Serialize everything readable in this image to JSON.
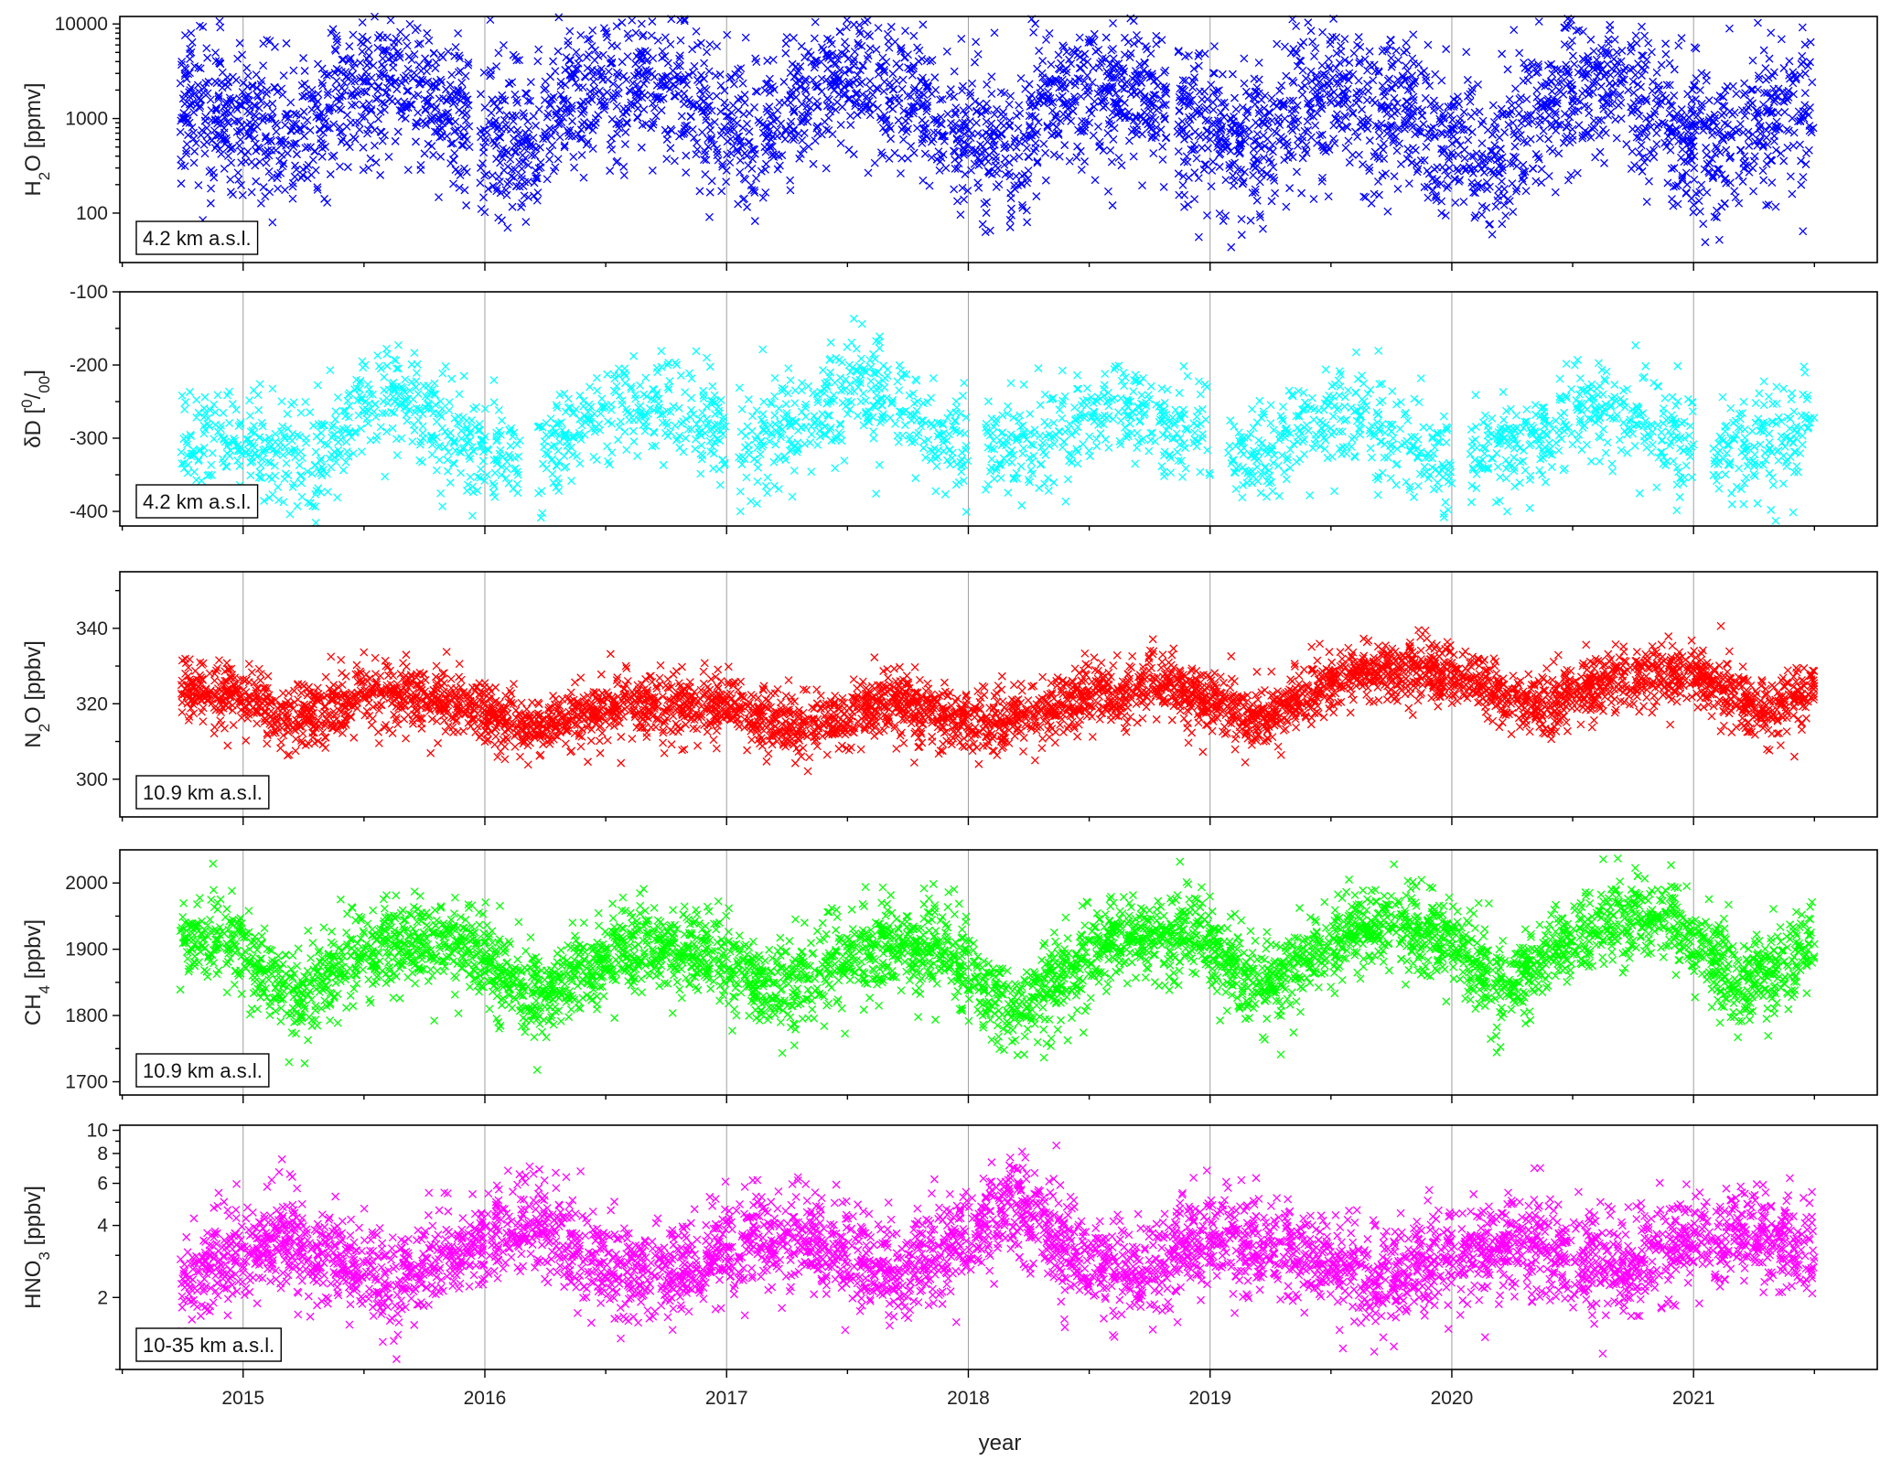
{
  "figure": {
    "xlabel": "year",
    "x_ticks": [
      "2015",
      "2016",
      "2017",
      "2018",
      "2019",
      "2020",
      "2021"
    ],
    "xlim": [
      2014.49,
      2021.76
    ],
    "grid": "vertical lines at each year"
  },
  "chart_data": [
    {
      "type": "scatter",
      "marker": "x",
      "ylabel": {
        "base": "H",
        "sub": "2",
        "rest": "O [ppmv]"
      },
      "annotation": "4.2 km a.s.l.",
      "color": "#0000ff",
      "yscale": "log",
      "ylim": [
        30,
        12000
      ],
      "y_ticks": [
        {
          "v": 100,
          "t": "100"
        },
        {
          "v": 1000,
          "t": "1000"
        },
        {
          "v": 10000,
          "t": "10000"
        }
      ],
      "minor_ticks": [
        200,
        300,
        400,
        500,
        600,
        700,
        800,
        900,
        2000,
        3000,
        4000,
        5000,
        6000,
        7000,
        8000,
        9000
      ],
      "x_range": [
        2014.74,
        2021.5
      ],
      "baseline": [
        [
          2014.74,
          1500
        ],
        [
          2015.0,
          800
        ],
        [
          2015.3,
          600
        ],
        [
          2015.6,
          2500
        ],
        [
          2015.9,
          1000
        ],
        [
          2016.2,
          400
        ],
        [
          2016.5,
          2500
        ],
        [
          2016.75,
          2000
        ],
        [
          2017.1,
          500
        ],
        [
          2017.55,
          3000
        ],
        [
          2017.9,
          700
        ],
        [
          2018.2,
          500
        ],
        [
          2018.55,
          2500
        ],
        [
          2018.9,
          800
        ],
        [
          2019.2,
          500
        ],
        [
          2019.55,
          2000
        ],
        [
          2019.9,
          700
        ],
        [
          2020.2,
          300
        ],
        [
          2020.6,
          2500
        ],
        [
          2020.9,
          800
        ],
        [
          2021.1,
          500
        ],
        [
          2021.5,
          1500
        ]
      ],
      "spread_log10": 0.4,
      "points": 4200,
      "gaps": [
        [
          2015.94,
          2015.98
        ],
        [
          2018.82,
          2018.86
        ]
      ]
    },
    {
      "type": "scatter",
      "marker": "x",
      "ylabel": {
        "base": "δD [",
        "sup": "0",
        "rest": "/",
        "sub": "00",
        "end": "]"
      },
      "annotation": "4.2 km a.s.l.",
      "color": "#00ffff",
      "yscale": "linear",
      "ylim": [
        -420,
        -100
      ],
      "y_ticks": [
        {
          "v": -100,
          "t": "-100"
        },
        {
          "v": -200,
          "t": "-200"
        },
        {
          "v": -300,
          "t": "-300"
        },
        {
          "v": -400,
          "t": "-400"
        }
      ],
      "minor_ticks": [
        -150,
        -250,
        -350
      ],
      "x_range": [
        2014.74,
        2021.5
      ],
      "baseline": [
        [
          2014.74,
          -300
        ],
        [
          2015.0,
          -310
        ],
        [
          2015.3,
          -330
        ],
        [
          2015.6,
          -230
        ],
        [
          2015.9,
          -300
        ],
        [
          2016.2,
          -340
        ],
        [
          2016.55,
          -250
        ],
        [
          2016.8,
          -260
        ],
        [
          2017.1,
          -310
        ],
        [
          2017.55,
          -230
        ],
        [
          2017.9,
          -300
        ],
        [
          2018.2,
          -320
        ],
        [
          2018.6,
          -250
        ],
        [
          2018.9,
          -300
        ],
        [
          2019.2,
          -330
        ],
        [
          2019.55,
          -260
        ],
        [
          2019.9,
          -330
        ],
        [
          2020.2,
          -320
        ],
        [
          2020.6,
          -250
        ],
        [
          2020.9,
          -290
        ],
        [
          2021.1,
          -330
        ],
        [
          2021.5,
          -280
        ]
      ],
      "spread": 35,
      "points": 2600,
      "gaps": [
        [
          2016.15,
          2016.22
        ],
        [
          2017.0,
          2017.05
        ],
        [
          2018.0,
          2018.07
        ],
        [
          2019.0,
          2019.07
        ],
        [
          2020.0,
          2020.07
        ],
        [
          2021.0,
          2021.08
        ]
      ]
    },
    {
      "type": "scatter",
      "marker": "x",
      "ylabel": {
        "base": "N",
        "sub": "2",
        "rest": "O [ppbv]"
      },
      "annotation": "10.9 km a.s.l.",
      "color": "#ff0000",
      "yscale": "linear",
      "ylim": [
        290,
        355
      ],
      "y_ticks": [
        {
          "v": 300,
          "t": "300"
        },
        {
          "v": 320,
          "t": "320"
        },
        {
          "v": 340,
          "t": "340"
        }
      ],
      "minor_ticks": [
        310,
        330,
        350
      ],
      "x_range": [
        2014.74,
        2021.5
      ],
      "baseline": [
        [
          2014.74,
          324
        ],
        [
          2015.0,
          322
        ],
        [
          2015.2,
          315
        ],
        [
          2015.5,
          323
        ],
        [
          2015.9,
          320
        ],
        [
          2016.2,
          314
        ],
        [
          2016.6,
          320
        ],
        [
          2017.0,
          320
        ],
        [
          2017.3,
          313
        ],
        [
          2017.7,
          321
        ],
        [
          2018.1,
          314
        ],
        [
          2018.5,
          322
        ],
        [
          2018.8,
          326
        ],
        [
          2019.2,
          316
        ],
        [
          2019.6,
          329
        ],
        [
          2020.0,
          328
        ],
        [
          2020.3,
          319
        ],
        [
          2020.7,
          327
        ],
        [
          2021.0,
          328
        ],
        [
          2021.3,
          318
        ],
        [
          2021.5,
          324
        ]
      ],
      "spread": 4,
      "points": 4400,
      "gaps": []
    },
    {
      "type": "scatter",
      "marker": "x",
      "ylabel": {
        "base": "CH",
        "sub": "4",
        "rest": " [ppbv]"
      },
      "annotation": "10.9 km a.s.l.",
      "color": "#00ff00",
      "yscale": "linear",
      "ylim": [
        1680,
        2050
      ],
      "y_ticks": [
        {
          "v": 1700,
          "t": "1700"
        },
        {
          "v": 1800,
          "t": "1800"
        },
        {
          "v": 1900,
          "t": "1900"
        },
        {
          "v": 2000,
          "t": "2000"
        }
      ],
      "minor_ticks": [
        1750,
        1850,
        1950
      ],
      "x_range": [
        2014.74,
        2021.5
      ],
      "baseline": [
        [
          2014.74,
          1925
        ],
        [
          2015.0,
          1900
        ],
        [
          2015.2,
          1820
        ],
        [
          2015.5,
          1900
        ],
        [
          2015.9,
          1910
        ],
        [
          2016.2,
          1830
        ],
        [
          2016.6,
          1900
        ],
        [
          2016.9,
          1900
        ],
        [
          2017.2,
          1830
        ],
        [
          2017.6,
          1905
        ],
        [
          2017.9,
          1900
        ],
        [
          2018.2,
          1800
        ],
        [
          2018.6,
          1920
        ],
        [
          2018.95,
          1920
        ],
        [
          2019.2,
          1840
        ],
        [
          2019.6,
          1930
        ],
        [
          2019.95,
          1930
        ],
        [
          2020.2,
          1840
        ],
        [
          2020.6,
          1940
        ],
        [
          2020.9,
          1950
        ],
        [
          2021.2,
          1840
        ],
        [
          2021.5,
          1910
        ]
      ],
      "spread": 32,
      "points": 4400,
      "gaps": []
    },
    {
      "type": "scatter",
      "marker": "x",
      "ylabel": {
        "base": "HNO",
        "sub": "3",
        "rest": " [ppbv]"
      },
      "annotation": "10-35 km a.s.l.",
      "color": "#ff00ff",
      "yscale": "log",
      "ylim": [
        1.0,
        10.5
      ],
      "y_ticks": [
        {
          "v": 2,
          "t": "2"
        },
        {
          "v": 4,
          "t": "4"
        },
        {
          "v": 6,
          "t": "6"
        },
        {
          "v": 8,
          "t": "8"
        },
        {
          "v": 10,
          "t": "10"
        }
      ],
      "minor_ticks": [
        1,
        3,
        5,
        7,
        9
      ],
      "x_range": [
        2014.74,
        2021.5
      ],
      "baseline": [
        [
          2014.74,
          2.3
        ],
        [
          2015.0,
          3.0
        ],
        [
          2015.2,
          3.5
        ],
        [
          2015.6,
          2.3
        ],
        [
          2015.95,
          3.3
        ],
        [
          2016.2,
          4.0
        ],
        [
          2016.6,
          2.4
        ],
        [
          2017.0,
          3.2
        ],
        [
          2017.3,
          3.6
        ],
        [
          2017.7,
          2.4
        ],
        [
          2018.0,
          3.6
        ],
        [
          2018.2,
          5.0
        ],
        [
          2018.4,
          3.2
        ],
        [
          2018.7,
          2.4
        ],
        [
          2019.0,
          3.6
        ],
        [
          2019.3,
          3.2
        ],
        [
          2019.7,
          2.3
        ],
        [
          2020.0,
          3.0
        ],
        [
          2020.3,
          3.4
        ],
        [
          2020.7,
          2.5
        ],
        [
          2021.0,
          3.6
        ],
        [
          2021.3,
          3.6
        ],
        [
          2021.5,
          3.0
        ]
      ],
      "spread_log10": 0.1,
      "points": 4400,
      "gaps": []
    }
  ]
}
